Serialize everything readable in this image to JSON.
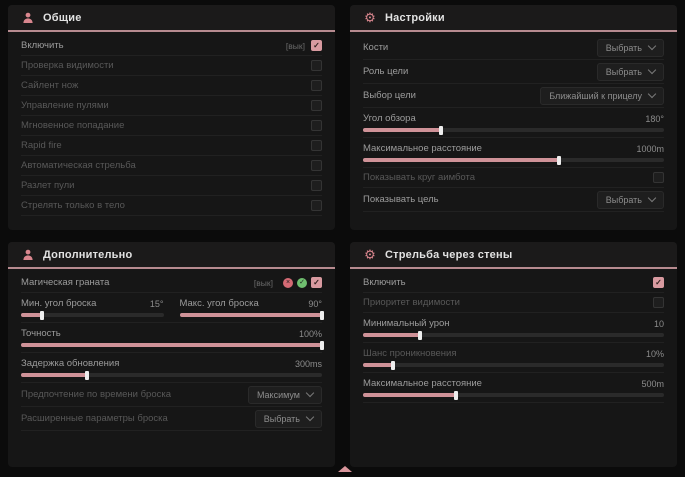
{
  "colors": {
    "accent": "#d4949a",
    "page_bg": "#0b0b0b",
    "panel_bg": "#161616",
    "header_underline": "#b78b90",
    "checkbox_checked": "#d89aa0",
    "slider_fill": "#cf9298",
    "badge_red": "#d46a74",
    "badge_green": "#6fbf6f"
  },
  "icons": {
    "checkmark": "✓",
    "gear": "⚙",
    "x_badge": "×",
    "check_badge": "✓"
  },
  "panels": {
    "general": {
      "title": "Общие",
      "rows": [
        {
          "label": "Включить",
          "state": "[вык]",
          "checked": true
        },
        {
          "label": "Проверка видимости",
          "checked": false
        },
        {
          "label": "Сайлент нож",
          "checked": false
        },
        {
          "label": "Управление пулями",
          "checked": false
        },
        {
          "label": "Мгновенное попадание",
          "checked": false
        },
        {
          "label": "Rapid fire",
          "checked": false
        },
        {
          "label": "Автоматическая стрельба",
          "checked": false
        },
        {
          "label": "Разлет пули",
          "checked": false
        },
        {
          "label": "Стрелять только в тело",
          "checked": false
        }
      ]
    },
    "settings": {
      "title": "Настройки",
      "rows": [
        {
          "label": "Кости",
          "option": "Выбрать"
        },
        {
          "label": "Роль цели",
          "option": "Выбрать"
        },
        {
          "label": "Выбор цели",
          "option": "Ближайший к прицелу"
        },
        {
          "label": "Угол обзора",
          "value": "180°",
          "fill_pct": 26
        },
        {
          "label": "Максимальное расстояние",
          "value": "1000m",
          "fill_pct": 65
        },
        {
          "label": "Показывать круг аимбота",
          "checked": false
        },
        {
          "label": "Показывать цель",
          "option": "Выбрать"
        }
      ]
    },
    "additional": {
      "title": "Дополнительно",
      "rows": [
        {
          "label": "Магическая граната",
          "state": "[вык]",
          "checked": true
        },
        {
          "label": "Мин. угол броска",
          "value": "15°",
          "fill_pct": 15
        },
        {
          "label": "Макс. угол броска",
          "value": "90°",
          "fill_pct": 100
        },
        {
          "label": "Точность",
          "value": "100%",
          "fill_pct": 100
        },
        {
          "label": "Задержка обновления",
          "value": "300ms",
          "fill_pct": 22
        },
        {
          "label": "Предпочтение по времени броска",
          "option": "Максимум"
        },
        {
          "label": "Расширенные параметры броска",
          "option": "Выбрать"
        }
      ]
    },
    "walls": {
      "title": "Стрельба через стены",
      "rows": [
        {
          "label": "Включить",
          "checked": true
        },
        {
          "label": "Приоритет видимости",
          "checked": false
        },
        {
          "label": "Минимальный урон",
          "value": "10",
          "fill_pct": 19
        },
        {
          "label": "Шанс проникновения",
          "value": "10%",
          "fill_pct": 10
        },
        {
          "label": "Максимальное расстояние",
          "value": "500m",
          "fill_pct": 31
        }
      ]
    }
  }
}
